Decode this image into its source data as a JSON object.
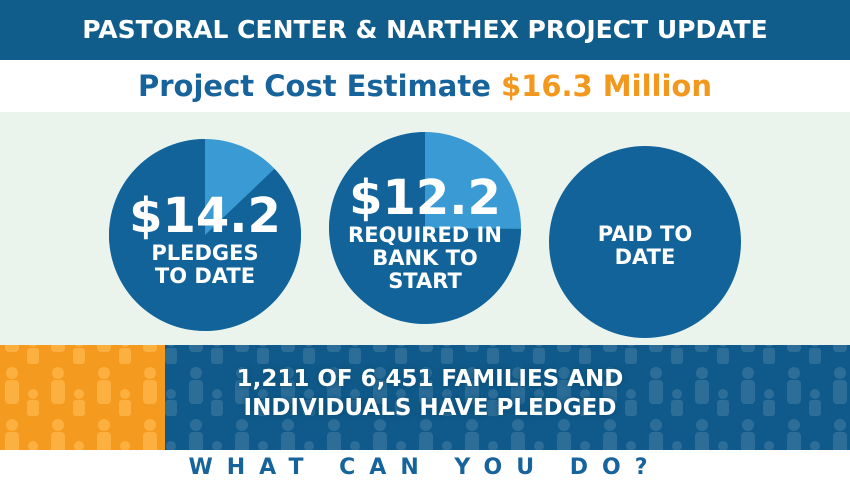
{
  "header": {
    "title": "PASTORAL CENTER & NARTHEX PROJECT UPDATE"
  },
  "estimate": {
    "label": "Project Cost Estimate",
    "value": 16.3,
    "value_label": "$16.3 Million"
  },
  "circles": [
    {
      "value": 14.2,
      "value_label": "$14.2",
      "label": "PLEDGES TO DATE"
    },
    {
      "value": 12.2,
      "value_label": "$12.2",
      "label": "REQUIRED IN BANK TO START"
    },
    {
      "label": "PAID TO DATE"
    }
  ],
  "families": {
    "text": "1,211 OF 6,451 FAMILIES AND INDIVIDUALS HAVE PLEDGED"
  },
  "footer": {
    "text": "WHAT CAN YOU DO?"
  }
}
